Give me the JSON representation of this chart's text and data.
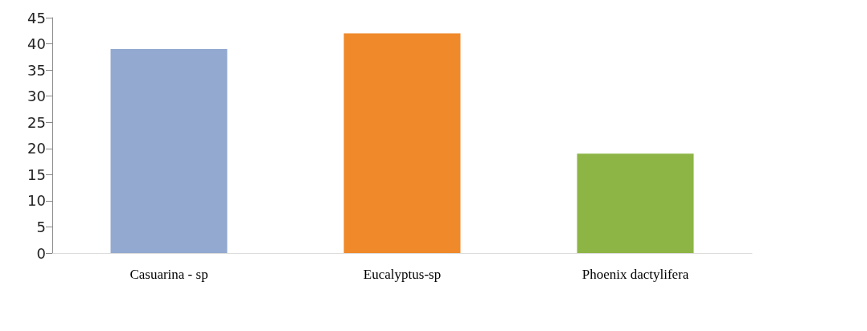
{
  "chart_data": {
    "type": "bar",
    "categories": [
      "Casuarina - sp",
      "Eucalyptus-sp",
      "Phoenix dactylifera"
    ],
    "values": [
      39,
      42,
      19
    ],
    "colors": [
      "#93a9cf",
      "#f0892a",
      "#8db545"
    ],
    "ylim": [
      0,
      45
    ],
    "yticks": [
      0,
      5,
      10,
      15,
      20,
      25,
      30,
      35,
      40,
      45
    ]
  }
}
